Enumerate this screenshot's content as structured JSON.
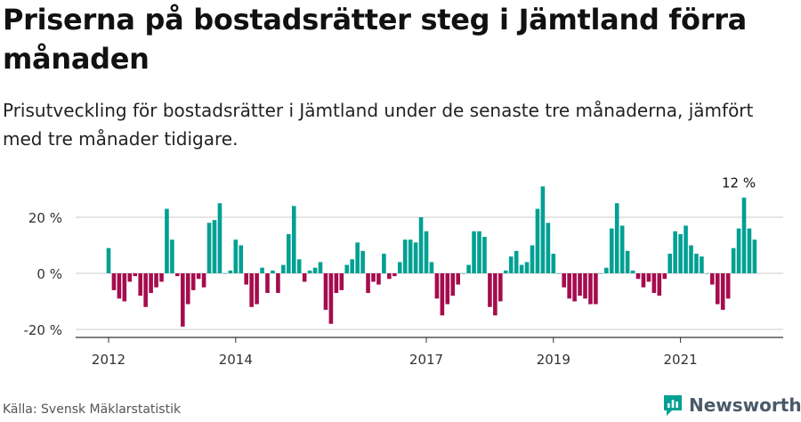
{
  "header": {
    "title": "Priserna på bostadsrätter steg i Jämtland förra månaden",
    "subtitle": "Prisutveckling för bostadsrätter i Jämtland under de senaste tre månaderna, jämfört med tre månader tidigare."
  },
  "footer": {
    "source": "Källa: Svensk Mäklarstatistik",
    "brand": "Newsworthy"
  },
  "colors": {
    "positive": "#00a093",
    "negative": "#a50c4e",
    "gridline": "#cccccc",
    "axis": "#333333"
  },
  "chart_data": {
    "type": "bar",
    "title": "Priserna på bostadsrätter steg i Jämtland förra månaden",
    "xlabel": "",
    "ylabel": "",
    "unit": "%",
    "start": "2012-01",
    "ylim": [
      -22,
      32
    ],
    "yticks": [
      20,
      0,
      -20
    ],
    "ytick_labels": [
      "20 %",
      "0 %",
      "-20 %"
    ],
    "xticks": [
      {
        "label": "2012",
        "index": 0
      },
      {
        "label": "2014",
        "index": 24
      },
      {
        "label": "2017",
        "index": 60
      },
      {
        "label": "2019",
        "index": 84
      },
      {
        "label": "2021",
        "index": 108
      }
    ],
    "annotation": {
      "text": "12 %",
      "index": 119
    },
    "values": [
      9,
      -6,
      -9,
      -10,
      -3,
      -1,
      -8,
      -12,
      -7,
      -5,
      -3,
      23,
      12,
      -1,
      -19,
      -11,
      -6,
      -2,
      -5,
      18,
      19,
      25,
      0,
      1,
      12,
      10,
      -4,
      -12,
      -11,
      2,
      -7,
      1,
      -7,
      3,
      14,
      24,
      5,
      -3,
      1,
      2,
      4,
      -13,
      -18,
      -7,
      -6,
      3,
      5,
      11,
      8,
      -7,
      -3,
      -4,
      7,
      -2,
      -1,
      4,
      12,
      12,
      11,
      20,
      15,
      4,
      -9,
      -15,
      -11,
      -8,
      -4,
      0,
      3,
      15,
      15,
      13,
      -12,
      -15,
      -10,
      1,
      6,
      8,
      3,
      4,
      10,
      23,
      31,
      18,
      7,
      0,
      -5,
      -9,
      -10,
      -8,
      -9,
      -11,
      -11,
      0,
      2,
      16,
      25,
      17,
      8,
      1,
      -2,
      -5,
      -3,
      -7,
      -8,
      -2,
      7,
      15,
      14,
      17,
      10,
      7,
      6,
      0,
      -4,
      -11,
      -13,
      -9,
      9,
      16,
      27,
      16,
      12
    ]
  }
}
